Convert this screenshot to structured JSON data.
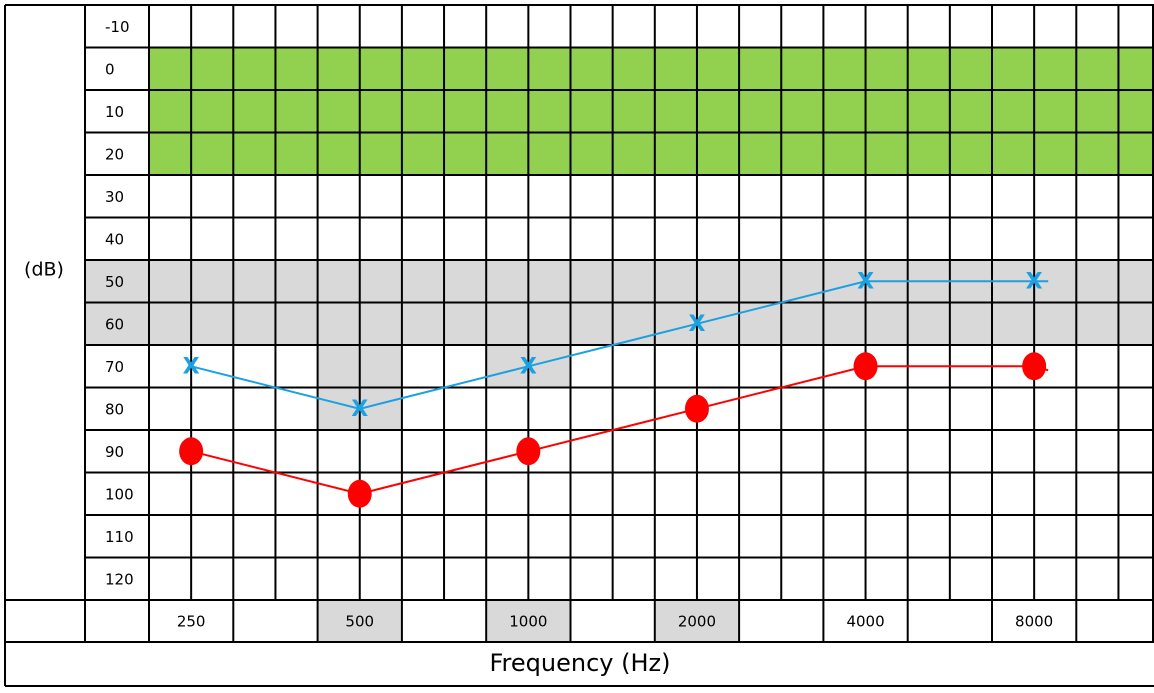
{
  "chart_data": {
    "type": "line",
    "ylabel": "(dB)",
    "xlabel": "Frequency (Hz)",
    "y_ticks": [
      "-10",
      "0",
      "10",
      "20",
      "30",
      "40",
      "50",
      "60",
      "70",
      "80",
      "90",
      "100",
      "110",
      "120"
    ],
    "y_reversed": true,
    "ylim": [
      -10,
      120
    ],
    "x_ticks": [
      "250",
      "",
      "500",
      "",
      "1000",
      "",
      "2000",
      "",
      "4000",
      "",
      "8000",
      ""
    ],
    "x_highlight_ticks": [
      "500",
      "1000",
      "2000"
    ],
    "grid": true,
    "x_scale": "log",
    "shaded_bands": [
      {
        "y_from": 0,
        "y_to": 20,
        "color": "#92d050",
        "x_from": 250,
        "x_to": "end"
      },
      {
        "y_from": 50,
        "y_to": 60,
        "color": "#d9d9d9",
        "x_from": "start",
        "x_to": "end"
      },
      {
        "y_from": 70,
        "y_to": 80,
        "color": "#d9d9d9",
        "x_from": 500,
        "x_to": 500
      },
      {
        "y_from": 60,
        "y_to": 70,
        "color": "#d9d9d9",
        "x_from": 1000,
        "x_to": 1000
      }
    ],
    "series": [
      {
        "marker": "x",
        "color": "#1ba1e2",
        "x": [
          250,
          500,
          1000,
          2000,
          4000,
          8000
        ],
        "y": [
          70,
          80,
          70,
          60,
          50,
          50
        ]
      },
      {
        "marker": "circle",
        "color": "#ff0000",
        "x": [
          250,
          500,
          1000,
          2000,
          4000,
          8000
        ],
        "y": [
          90,
          100,
          90,
          80,
          70,
          70
        ]
      }
    ]
  }
}
